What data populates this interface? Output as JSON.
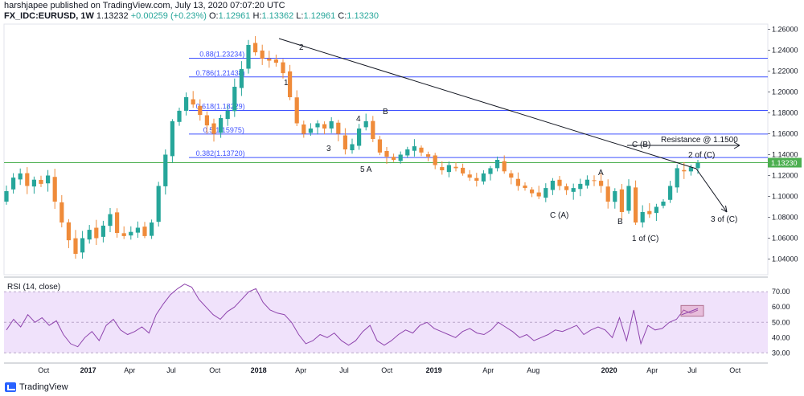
{
  "header": {
    "publisher_line": "harshjapee published on TradingView.com, July 13, 2020 07:07:20 UTC",
    "symbol": "FX_IDC:EURUSD, 1W",
    "last": "1.13232",
    "change": "+0.00259 (+0.23%)",
    "open_label": "O:",
    "open": "1.12961",
    "high_label": "H:",
    "high": "1.13362",
    "low_label": "L:",
    "low": "1.12961",
    "close_label": "C:",
    "close": "1.13230"
  },
  "colors": {
    "up": "#26a69a",
    "down": "#ef8b3a",
    "fib": "#3f51ff",
    "rsi": "#8e44ad",
    "rsi_band": "#f0e2fb",
    "current_price_line": "#4caf50"
  },
  "chart_data": [
    {
      "type": "candlestick",
      "title": "",
      "ylim": [
        1.025,
        1.265
      ],
      "y_ticks": [
        "1.26000",
        "1.24000",
        "1.22000",
        "1.20000",
        "1.18000",
        "1.16000",
        "1.14000",
        "1.12000",
        "1.10000",
        "1.08000",
        "1.06000",
        "1.04000"
      ],
      "x_ticks": [
        "Oct",
        "2017",
        "Apr",
        "Jul",
        "Oct",
        "2018",
        "Apr",
        "Jul",
        "Oct",
        "2019",
        "Apr",
        "Aug",
        "2020",
        "Apr",
        "Jul",
        "Oct"
      ],
      "price_label": "1.13230",
      "close_anchors": [
        1.105,
        1.118,
        1.122,
        1.11,
        1.116,
        1.112,
        1.12,
        1.095,
        1.075,
        1.058,
        1.045,
        1.06,
        1.068,
        1.06,
        1.072,
        1.083,
        1.065,
        1.062,
        1.066,
        1.07,
        1.062,
        1.075,
        1.11,
        1.14,
        1.172,
        1.182,
        1.195,
        1.188,
        1.178,
        1.168,
        1.16,
        1.175,
        1.182,
        1.205,
        1.222,
        1.245,
        1.238,
        1.232,
        1.23,
        1.228,
        1.218,
        1.195,
        1.17,
        1.16,
        1.165,
        1.17,
        1.165,
        1.172,
        1.16,
        1.145,
        1.15,
        1.165,
        1.172,
        1.155,
        1.142,
        1.138,
        1.135,
        1.14,
        1.145,
        1.148,
        1.142,
        1.138,
        1.13,
        1.125,
        1.13,
        1.127,
        1.122,
        1.118,
        1.115,
        1.122,
        1.127,
        1.135,
        1.124,
        1.118,
        1.11,
        1.108,
        1.103,
        1.1,
        1.108,
        1.115,
        1.11,
        1.106,
        1.108,
        1.112,
        1.116,
        1.115,
        1.11,
        1.095,
        1.105,
        1.085,
        1.11,
        1.075,
        1.085,
        1.083,
        1.09,
        1.095,
        1.11,
        1.127,
        1.124,
        1.128,
        1.132
      ],
      "annotations": [
        "2",
        "1",
        "3",
        "4",
        "B",
        "5 A",
        "C (B)",
        "A",
        "C (A)",
        "B",
        "1 of (C)",
        "2 of (C)",
        "3 of (C)",
        "Resistance @ 1.1500"
      ],
      "fib_levels": [
        {
          "label": "0.88(1.23234)",
          "value": 1.23234
        },
        {
          "label": "0.786(1.21438)",
          "value": 1.21438
        },
        {
          "label": "0.618(1.18229)",
          "value": 1.18229
        },
        {
          "label": "0.5(1.15975)",
          "value": 1.15975
        },
        {
          "label": "0.382(1.13720)",
          "value": 1.1372
        }
      ]
    },
    {
      "type": "line",
      "title": "RSI (14, close)",
      "ylim": [
        27,
        78
      ],
      "y_ticks": [
        "70.00",
        "60.00",
        "50.00",
        "40.00",
        "30.00"
      ],
      "band": [
        30,
        70
      ],
      "values": [
        45,
        52,
        47,
        55,
        50,
        53,
        48,
        51,
        42,
        36,
        34,
        40,
        44,
        38,
        48,
        52,
        45,
        42,
        44,
        47,
        43,
        55,
        62,
        68,
        72,
        75,
        73,
        65,
        60,
        55,
        52,
        57,
        60,
        65,
        70,
        72,
        63,
        58,
        56,
        55,
        50,
        42,
        36,
        38,
        42,
        40,
        43,
        38,
        35,
        38,
        44,
        48,
        38,
        35,
        38,
        42,
        45,
        43,
        48,
        50,
        46,
        44,
        42,
        40,
        44,
        46,
        43,
        42,
        45,
        50,
        47,
        44,
        40,
        42,
        38,
        40,
        42,
        45,
        44,
        46,
        48,
        42,
        45,
        47,
        45,
        40,
        53,
        38,
        58,
        36,
        48,
        45,
        46,
        50,
        52,
        58,
        56,
        58
      ]
    }
  ]
}
